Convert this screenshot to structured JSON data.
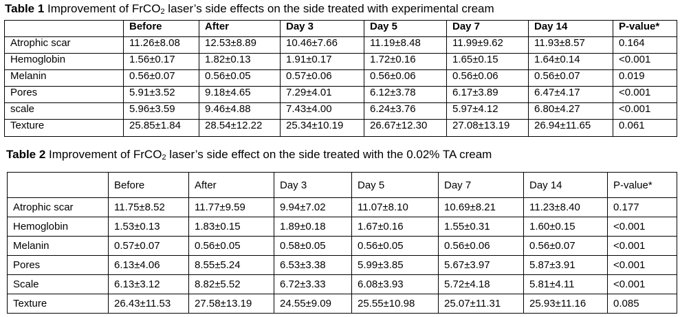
{
  "table1": {
    "caption_label": "Table 1",
    "caption_pre": " Improvement of FrCO",
    "caption_sub": "2",
    "caption_post": " laser’s side effects on the side treated with experimental cream",
    "headers": [
      "",
      "Before",
      "After",
      "Day 3",
      "Day 5",
      "Day 7",
      "Day 14",
      "P-value*"
    ],
    "rows": [
      [
        "Atrophic scar",
        "11.26±8.08",
        "12.53±8.89",
        "10.46±7.66",
        "11.19±8.48",
        "11.99±9.62",
        "11.93±8.57",
        "0.164"
      ],
      [
        "Hemoglobin",
        "1.56±0.17",
        "1.82±0.13",
        "1.91±0.17",
        "1.72±0.16",
        "1.65±0.15",
        "1.64±0.14",
        "<0.001"
      ],
      [
        "Melanin",
        "0.56±0.07",
        "0.56±0.05",
        "0.57±0.06",
        "0.56±0.06",
        "0.56±0.06",
        "0.56±0.07",
        "0.019"
      ],
      [
        "Pores",
        "5.91±3.52",
        "9.18±4.65",
        "7.29±4.01",
        "6.12±3.78",
        "6.17±3.89",
        "6.47±4.17",
        "<0.001"
      ],
      [
        "scale",
        "5.96±3.59",
        "9.46±4.88",
        "7.43±4.00",
        "6.24±3.76",
        "5.97±4.12",
        "6.80±4.27",
        "<0.001"
      ],
      [
        "Texture",
        "25.85±1.84",
        "28.54±12.22",
        "25.34±10.19",
        "26.67±12.30",
        "27.08±13.19",
        "26.94±11.65",
        "0.061"
      ]
    ]
  },
  "table2": {
    "caption_label": "Table 2",
    "caption_pre": " Improvement of FrCO",
    "caption_sub": "2",
    "caption_post": " laser’s side effect on the side treated with the 0.02% TA cream",
    "headers": [
      "",
      "Before",
      "After",
      "Day 3",
      "Day 5",
      "Day 7",
      "Day 14",
      "P-value*"
    ],
    "rows": [
      [
        "Atrophic scar",
        "11.75±8.52",
        "11.77±9.59",
        "9.94±7.02",
        "11.07±8.10",
        "10.69±8.21",
        "11.23±8.40",
        "0.177"
      ],
      [
        "Hemoglobin",
        "1.53±0.13",
        "1.83±0.15",
        "1.89±0.18",
        "1.67±0.16",
        "1.55±0.31",
        "1.60±0.15",
        "<0.001"
      ],
      [
        "Melanin",
        "0.57±0.07",
        "0.56±0.05",
        "0.58±0.05",
        "0.56±0.05",
        "0.56±0.06",
        "0.56±0.07",
        "<0.001"
      ],
      [
        "Pores",
        "6.13±4.06",
        "8.55±5.24",
        "6.53±3.38",
        "5.99±3.85",
        "5.67±3.97",
        "5.87±3.91",
        "<0.001"
      ],
      [
        "Scale",
        "6.13±3.12",
        "8.82±5.52",
        "6.72±3.33",
        "6.08±3.93",
        "5.72±4.18",
        "5.81±4.11",
        "<0.001"
      ],
      [
        "Texture",
        "26.43±11.53",
        "27.58±13.19",
        "24.55±9.09",
        "25.55±10.98",
        "25.07±11.31",
        "25.93±11.16",
        "0.085"
      ]
    ]
  }
}
